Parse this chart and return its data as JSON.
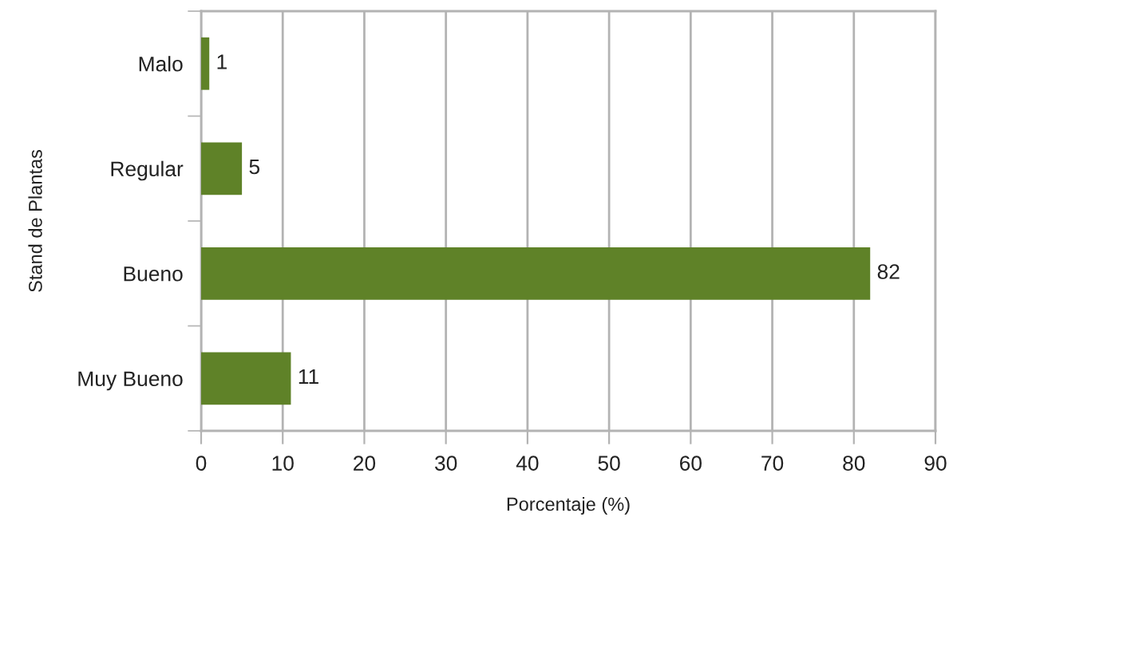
{
  "chart_data": {
    "type": "bar",
    "orientation": "horizontal",
    "categories": [
      "Malo",
      "Regular",
      "Bueno",
      "Muy Bueno"
    ],
    "values": [
      1,
      5,
      82,
      11
    ],
    "color": "#5f8228",
    "xlabel": "Porcentaje (%)",
    "ylabel": "Stand de Plantas",
    "xlim": [
      0,
      90
    ],
    "xticks": [
      0,
      10,
      20,
      30,
      40,
      50,
      60,
      70,
      80,
      90
    ],
    "grid": "x",
    "data_labels": true,
    "legend": false
  }
}
